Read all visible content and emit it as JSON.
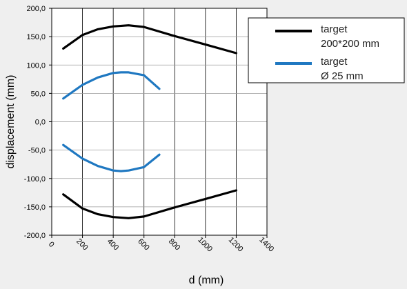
{
  "chart_data": {
    "type": "line",
    "xlabel": "d (mm)",
    "ylabel": "displacement (mm)",
    "xlim": [
      0,
      1400
    ],
    "ylim": [
      -200,
      200
    ],
    "x_ticks": [
      0,
      200,
      400,
      600,
      800,
      1000,
      1200,
      1400
    ],
    "x_tick_labels": [
      "0",
      "200",
      "400",
      "600",
      "800",
      "1000",
      "1200",
      "1400"
    ],
    "y_ticks": [
      200,
      150,
      100,
      50,
      0,
      -50,
      -100,
      -150,
      -200
    ],
    "y_tick_labels": [
      "200,0",
      "150,0",
      "100,0",
      "50,0",
      "0,0",
      "-50,0",
      "-100,0",
      "-150,0",
      "-200,0"
    ],
    "grid": "vertical and horizontal",
    "legend_position": "top-right",
    "series": [
      {
        "name": "target 200*200 mm",
        "legend_lines": [
          "target",
          "200*200 mm"
        ],
        "color": "#000000",
        "x": [
          75,
          200,
          300,
          400,
          500,
          600,
          800,
          1000,
          1200
        ],
        "y": [
          129,
          153,
          163,
          168,
          170,
          167,
          151,
          136,
          121
        ]
      },
      {
        "name": "target 200*200 mm (lower)",
        "color": "#000000",
        "x": [
          75,
          200,
          300,
          400,
          500,
          600,
          800,
          1000,
          1200
        ],
        "y": [
          -128,
          -153,
          -163,
          -168,
          -170,
          -167,
          -151,
          -136,
          -121
        ]
      },
      {
        "name": "target Ø 25 mm",
        "legend_lines": [
          "target",
          "Ø 25 mm"
        ],
        "color": "#1f78c1",
        "x": [
          75,
          200,
          300,
          400,
          450,
          500,
          600,
          700
        ],
        "y": [
          41,
          65,
          78,
          86,
          87,
          87,
          82,
          58
        ]
      },
      {
        "name": "target Ø 25 mm (lower)",
        "color": "#1f78c1",
        "x": [
          75,
          200,
          300,
          400,
          450,
          500,
          600,
          700
        ],
        "y": [
          -41,
          -65,
          -78,
          -86,
          -87,
          -86,
          -80,
          -58
        ]
      }
    ]
  }
}
